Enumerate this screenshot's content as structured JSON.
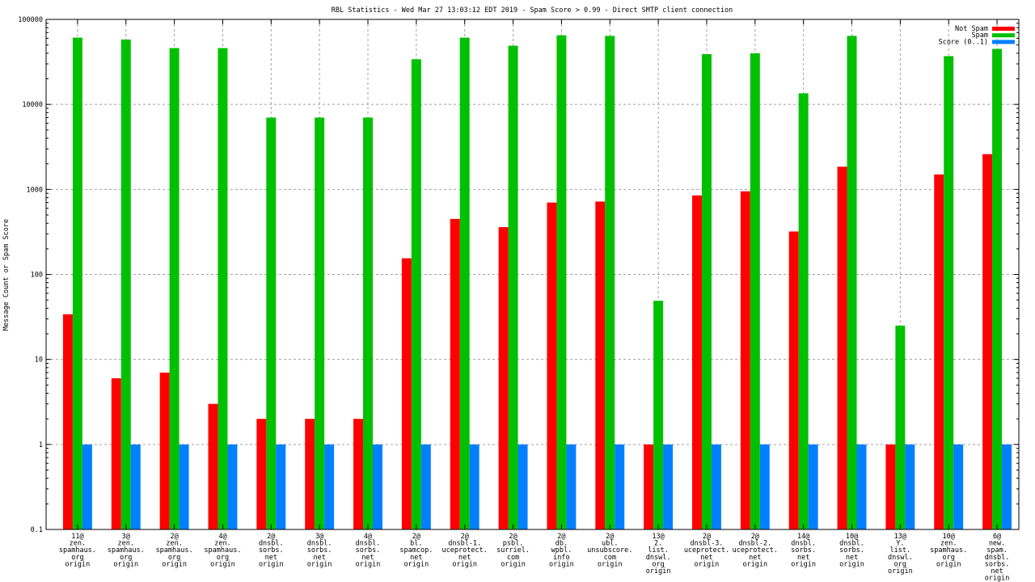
{
  "chart_data": {
    "type": "bar",
    "title": "RBL Statistics - Wed Mar 27 13:03:12 EDT 2019 - Spam Score > 0.99 - Direct SMTP client connection",
    "xlabel": "",
    "ylabel": "Message Count or Spam Score",
    "yscale": "log",
    "ylim": [
      0.1,
      100000
    ],
    "yticks": [
      "0.1",
      "1",
      "10",
      "100",
      "1000",
      "10000",
      "100000"
    ],
    "grid": true,
    "legend_position": "top-right",
    "categories": [
      [
        "11@",
        "zen.",
        "spamhaus.",
        "org",
        "origin"
      ],
      [
        "3@",
        "zen.",
        "spamhaus.",
        "org",
        "origin"
      ],
      [
        "2@",
        "zen.",
        "spamhaus.",
        "org",
        "origin"
      ],
      [
        "4@",
        "zen.",
        "spamhaus.",
        "org",
        "origin"
      ],
      [
        "2@",
        "dnsbl.",
        "sorbs.",
        "net",
        "origin"
      ],
      [
        "3@",
        "dnsbl.",
        "sorbs.",
        "net",
        "origin"
      ],
      [
        "4@",
        "dnsbl.",
        "sorbs.",
        "net",
        "origin"
      ],
      [
        "2@",
        "bl.",
        "spamcop.",
        "net",
        "origin"
      ],
      [
        "2@",
        "dnsbl-1.",
        "uceprotect.",
        "net",
        "origin"
      ],
      [
        "2@",
        "psbl.",
        "surriel.",
        "com",
        "origin"
      ],
      [
        "2@",
        "db.",
        "wpbl.",
        "info",
        "origin"
      ],
      [
        "2@",
        "ubl.",
        "unsubscore.",
        "com",
        "origin"
      ],
      [
        "13@",
        "2.",
        "list.",
        "dnswl.",
        "org",
        "origin"
      ],
      [
        "2@",
        "dnsbl-3.",
        "uceprotect.",
        "net",
        "origin"
      ],
      [
        "2@",
        "dnsbl-2.",
        "uceprotect.",
        "net",
        "origin"
      ],
      [
        "14@",
        "dnsbl.",
        "sorbs.",
        "net",
        "origin"
      ],
      [
        "10@",
        "dnsbl.",
        "sorbs.",
        "net",
        "origin"
      ],
      [
        "13@",
        "Y.",
        "list.",
        "dnswl.",
        "org",
        "origin"
      ],
      [
        "10@",
        "zen.",
        "spamhaus.",
        "org",
        "origin"
      ],
      [
        "6@",
        "new.",
        "spam.",
        "dnsbl.",
        "sorbs.",
        "net",
        "origin"
      ]
    ],
    "series": [
      {
        "name": "Not Spam",
        "color": "#ff0000",
        "values": [
          34,
          6,
          7,
          3,
          2,
          2,
          2,
          155,
          450,
          360,
          700,
          720,
          1,
          850,
          950,
          320,
          1850,
          1,
          1500,
          2600
        ]
      },
      {
        "name": "Spam",
        "color": "#00c000",
        "values": [
          61000,
          58000,
          46000,
          46000,
          7000,
          7000,
          7000,
          34000,
          61000,
          49000,
          65000,
          64000,
          49,
          39000,
          40000,
          13500,
          64000,
          25,
          37000,
          45000
        ]
      },
      {
        "name": "Score (0..1)",
        "color": "#0080ff",
        "values": [
          1,
          1,
          1,
          1,
          1,
          1,
          1,
          1,
          1,
          1,
          1,
          1,
          1,
          1,
          1,
          1,
          1,
          1,
          1,
          1
        ]
      }
    ]
  }
}
